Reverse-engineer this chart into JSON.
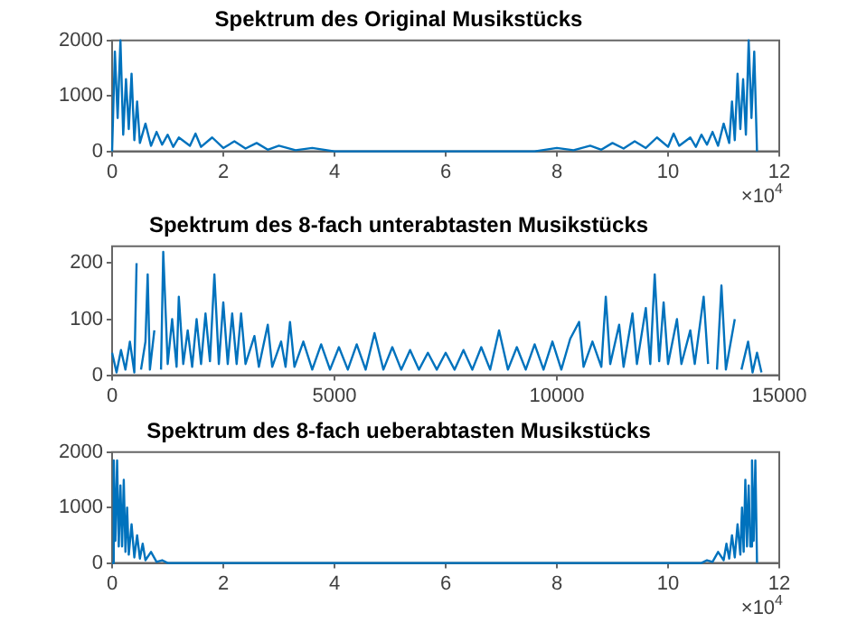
{
  "chart_data": [
    {
      "type": "line",
      "title": "Spektrum des Original Musikstücks",
      "marker": "none",
      "x": [
        0,
        0.05,
        0.1,
        0.15,
        0.2,
        0.25,
        0.3,
        0.35,
        0.4,
        0.45,
        0.5,
        0.6,
        0.7,
        0.8,
        0.9,
        1,
        1.1,
        1.2,
        1.4,
        1.5,
        1.6,
        1.8,
        2,
        2.2,
        2.4,
        2.6,
        2.8,
        3,
        3.3,
        3.6,
        4,
        5,
        5.8,
        6.6,
        7.6,
        8,
        8.3,
        8.6,
        8.8,
        9,
        9.2,
        9.4,
        9.6,
        9.8,
        10,
        10.1,
        10.2,
        10.4,
        10.5,
        10.6,
        10.7,
        10.8,
        10.9,
        11,
        11.1,
        11.15,
        11.2,
        11.25,
        11.3,
        11.35,
        11.4,
        11.45,
        11.5,
        11.55,
        11.6
      ],
      "series": [
        {
          "color": "#0072bd",
          "values": [
            0,
            1800,
            600,
            2000,
            300,
            1300,
            400,
            1400,
            200,
            900,
            150,
            500,
            100,
            350,
            120,
            300,
            80,
            250,
            100,
            320,
            80,
            250,
            60,
            180,
            50,
            150,
            30,
            100,
            20,
            60,
            0,
            0,
            0,
            0,
            0,
            60,
            20,
            100,
            30,
            150,
            50,
            180,
            60,
            250,
            80,
            320,
            100,
            250,
            80,
            300,
            120,
            350,
            100,
            500,
            150,
            900,
            200,
            1400,
            400,
            1300,
            300,
            2000,
            600,
            1800,
            0
          ]
        }
      ],
      "xlim": [
        0,
        12
      ],
      "xticks": [
        0,
        2,
        4,
        6,
        8,
        10,
        12
      ],
      "ylim": [
        0,
        2000
      ],
      "yticks": [
        0,
        1000,
        2000
      ],
      "annotations": [
        "×10$^{4}$"
      ]
    },
    {
      "type": "line",
      "title": "Spektrum des 8-fach unterabtasten Musikstücks",
      "marker": "none",
      "x": [
        0,
        100,
        200,
        300,
        400,
        500,
        550,
        600,
        650,
        750,
        800,
        850,
        950,
        1050,
        1100,
        1150,
        1250,
        1350,
        1450,
        1500,
        1600,
        1700,
        1800,
        1900,
        2000,
        2100,
        2200,
        2300,
        2400,
        2500,
        2600,
        2700,
        2800,
        2900,
        3000,
        3200,
        3300,
        3500,
        3600,
        3800,
        3900,
        4000,
        4100,
        4300,
        4500,
        4700,
        4900,
        5100,
        5300,
        5500,
        5700,
        5900,
        6100,
        6300,
        6500,
        6700,
        6900,
        7100,
        7300,
        7500,
        7700,
        7900,
        8100,
        8300,
        8500,
        8700,
        8900,
        9100,
        9300,
        9500,
        9700,
        9900,
        10100,
        10300,
        10500,
        10600,
        10800,
        11000,
        11100,
        11200,
        11400,
        11500,
        11700,
        11800,
        12000,
        12100,
        12200,
        12300,
        12400,
        12500,
        12700,
        12800,
        13000,
        13100,
        13300,
        13400,
        13500,
        13600,
        13700,
        13800,
        14000,
        14100,
        14150,
        14300,
        14400,
        14500,
        14600
      ],
      "series": [
        {
          "color": "#0072bd",
          "values": [
            40,
            5,
            45,
            10,
            60,
            5,
            200,
            null,
            10,
            60,
            180,
            10,
            80,
            null,
            10,
            220,
            20,
            100,
            15,
            140,
            20,
            80,
            15,
            100,
            20,
            110,
            25,
            180,
            20,
            130,
            20,
            110,
            20,
            110,
            20,
            70,
            15,
            90,
            15,
            60,
            15,
            95,
            15,
            60,
            10,
            55,
            10,
            50,
            10,
            55,
            10,
            75,
            10,
            50,
            10,
            45,
            10,
            40,
            10,
            40,
            10,
            45,
            10,
            50,
            10,
            80,
            10,
            50,
            10,
            55,
            10,
            60,
            10,
            65,
            95,
            15,
            60,
            15,
            140,
            20,
            90,
            15,
            110,
            20,
            120,
            20,
            180,
            25,
            130,
            20,
            100,
            20,
            80,
            20,
            140,
            20,
            null,
            10,
            160,
            10,
            100,
            null,
            10,
            60,
            5,
            40,
            5
          ]
        }
      ],
      "xlim": [
        0,
        15000
      ],
      "xticks": [
        0,
        5000,
        10000,
        15000
      ],
      "ylim": [
        0,
        230
      ],
      "yticks": [
        0,
        100,
        200
      ]
    },
    {
      "type": "line",
      "title": "Spektrum des 8-fach ueberabtasten Musikstücks",
      "marker": "none",
      "x": [
        0,
        0.03,
        0.06,
        0.09,
        0.12,
        0.15,
        0.18,
        0.21,
        0.24,
        0.27,
        0.3,
        0.35,
        0.4,
        0.45,
        0.5,
        0.55,
        0.6,
        0.7,
        0.8,
        0.9,
        1,
        6,
        10.6,
        10.7,
        10.8,
        10.9,
        11,
        11.05,
        11.1,
        11.15,
        11.2,
        11.25,
        11.3,
        11.33,
        11.36,
        11.39,
        11.42,
        11.45,
        11.48,
        11.51,
        11.54,
        11.57,
        11.6
      ],
      "series": [
        {
          "color": "#0072bd",
          "values": [
            0,
            1850,
            400,
            1850,
            300,
            1400,
            300,
            1500,
            200,
            1000,
            150,
            700,
            100,
            500,
            80,
            350,
            50,
            200,
            20,
            50,
            0,
            0,
            0,
            50,
            20,
            200,
            50,
            350,
            80,
            500,
            100,
            700,
            150,
            1000,
            200,
            1500,
            300,
            1400,
            300,
            1850,
            400,
            1850,
            0
          ]
        }
      ],
      "xlim": [
        0,
        12
      ],
      "xticks": [
        0,
        2,
        4,
        6,
        8,
        10,
        12
      ],
      "ylim": [
        0,
        2000
      ],
      "yticks": [
        0,
        1000,
        2000
      ],
      "annotations": [
        "×10$^{4}$"
      ]
    }
  ]
}
